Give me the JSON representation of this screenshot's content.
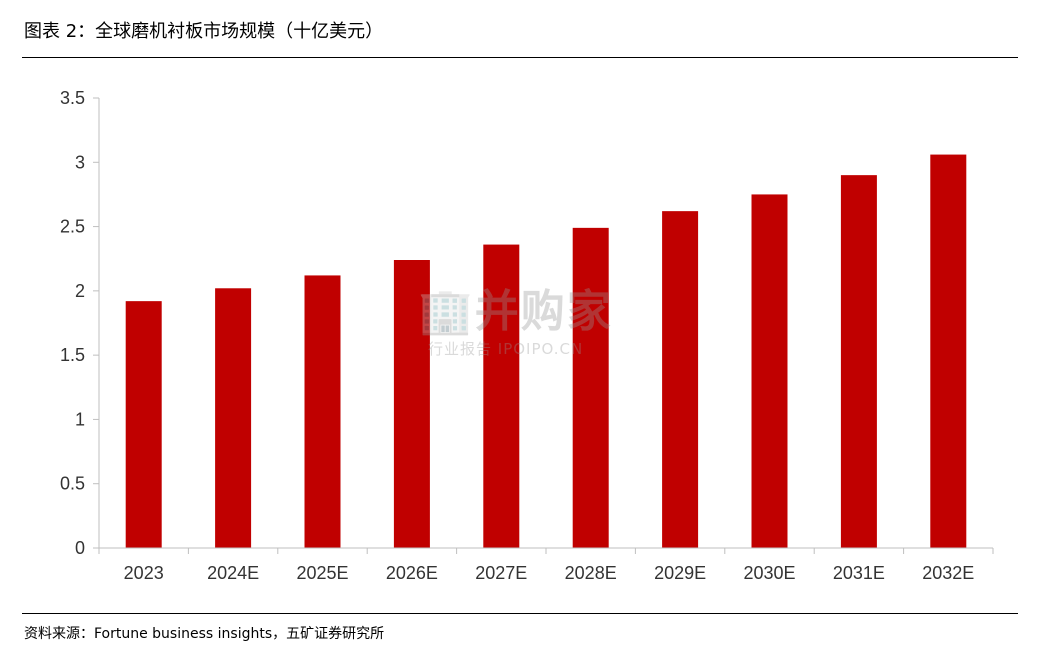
{
  "header": {
    "title": "图表 2：全球磨机衬板市场规模（十亿美元）"
  },
  "footer": {
    "source": "资料来源：Fortune business insights，五矿证券研究所"
  },
  "watermark": {
    "main": "🏢并购家",
    "sub": "行业报告 IPOIPO.CN"
  },
  "chart_data": {
    "type": "bar",
    "title": "",
    "xlabel": "",
    "ylabel": "",
    "categories": [
      "2023",
      "2024E",
      "2025E",
      "2026E",
      "2027E",
      "2028E",
      "2029E",
      "2030E",
      "2031E",
      "2032E"
    ],
    "values": [
      1.92,
      2.02,
      2.12,
      2.24,
      2.36,
      2.49,
      2.62,
      2.75,
      2.9,
      3.06
    ],
    "ylim": [
      0,
      3.5
    ],
    "yticks": [
      "0",
      "0.5",
      "1",
      "1.5",
      "2",
      "2.5",
      "3",
      "3.5"
    ],
    "grid": false,
    "legend": "none",
    "bar_color": "#C00000",
    "axis_color": "#BFBFBF"
  }
}
